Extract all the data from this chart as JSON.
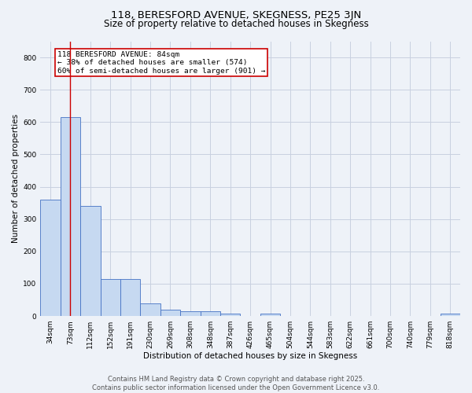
{
  "title_line1": "118, BERESFORD AVENUE, SKEGNESS, PE25 3JN",
  "title_line2": "Size of property relative to detached houses in Skegness",
  "xlabel": "Distribution of detached houses by size in Skegness",
  "ylabel": "Number of detached properties",
  "categories": [
    "34sqm",
    "73sqm",
    "112sqm",
    "152sqm",
    "191sqm",
    "230sqm",
    "269sqm",
    "308sqm",
    "348sqm",
    "387sqm",
    "426sqm",
    "465sqm",
    "504sqm",
    "544sqm",
    "583sqm",
    "622sqm",
    "661sqm",
    "700sqm",
    "740sqm",
    "779sqm",
    "818sqm"
  ],
  "values": [
    360,
    615,
    340,
    115,
    115,
    40,
    20,
    15,
    15,
    8,
    0,
    8,
    0,
    0,
    0,
    0,
    0,
    0,
    0,
    0,
    8
  ],
  "bar_color": "#c6d9f1",
  "bar_edge_color": "#4472c4",
  "grid_color": "#c8d0e0",
  "red_line_index": 1,
  "annotation_text": "118 BERESFORD AVENUE: 84sqm\n← 38% of detached houses are smaller (574)\n60% of semi-detached houses are larger (901) →",
  "annotation_box_color": "#ffffff",
  "annotation_border_color": "#cc0000",
  "ylim": [
    0,
    850
  ],
  "yticks": [
    0,
    100,
    200,
    300,
    400,
    500,
    600,
    700,
    800
  ],
  "footer_line1": "Contains HM Land Registry data © Crown copyright and database right 2025.",
  "footer_line2": "Contains public sector information licensed under the Open Government Licence v3.0.",
  "bg_color": "#eef2f8",
  "plot_bg_color": "#eef2f8",
  "title1_fontsize": 9.5,
  "title2_fontsize": 8.5,
  "axis_label_fontsize": 7.5,
  "tick_fontsize": 6.5,
  "annotation_fontsize": 6.8,
  "footer_fontsize": 6
}
